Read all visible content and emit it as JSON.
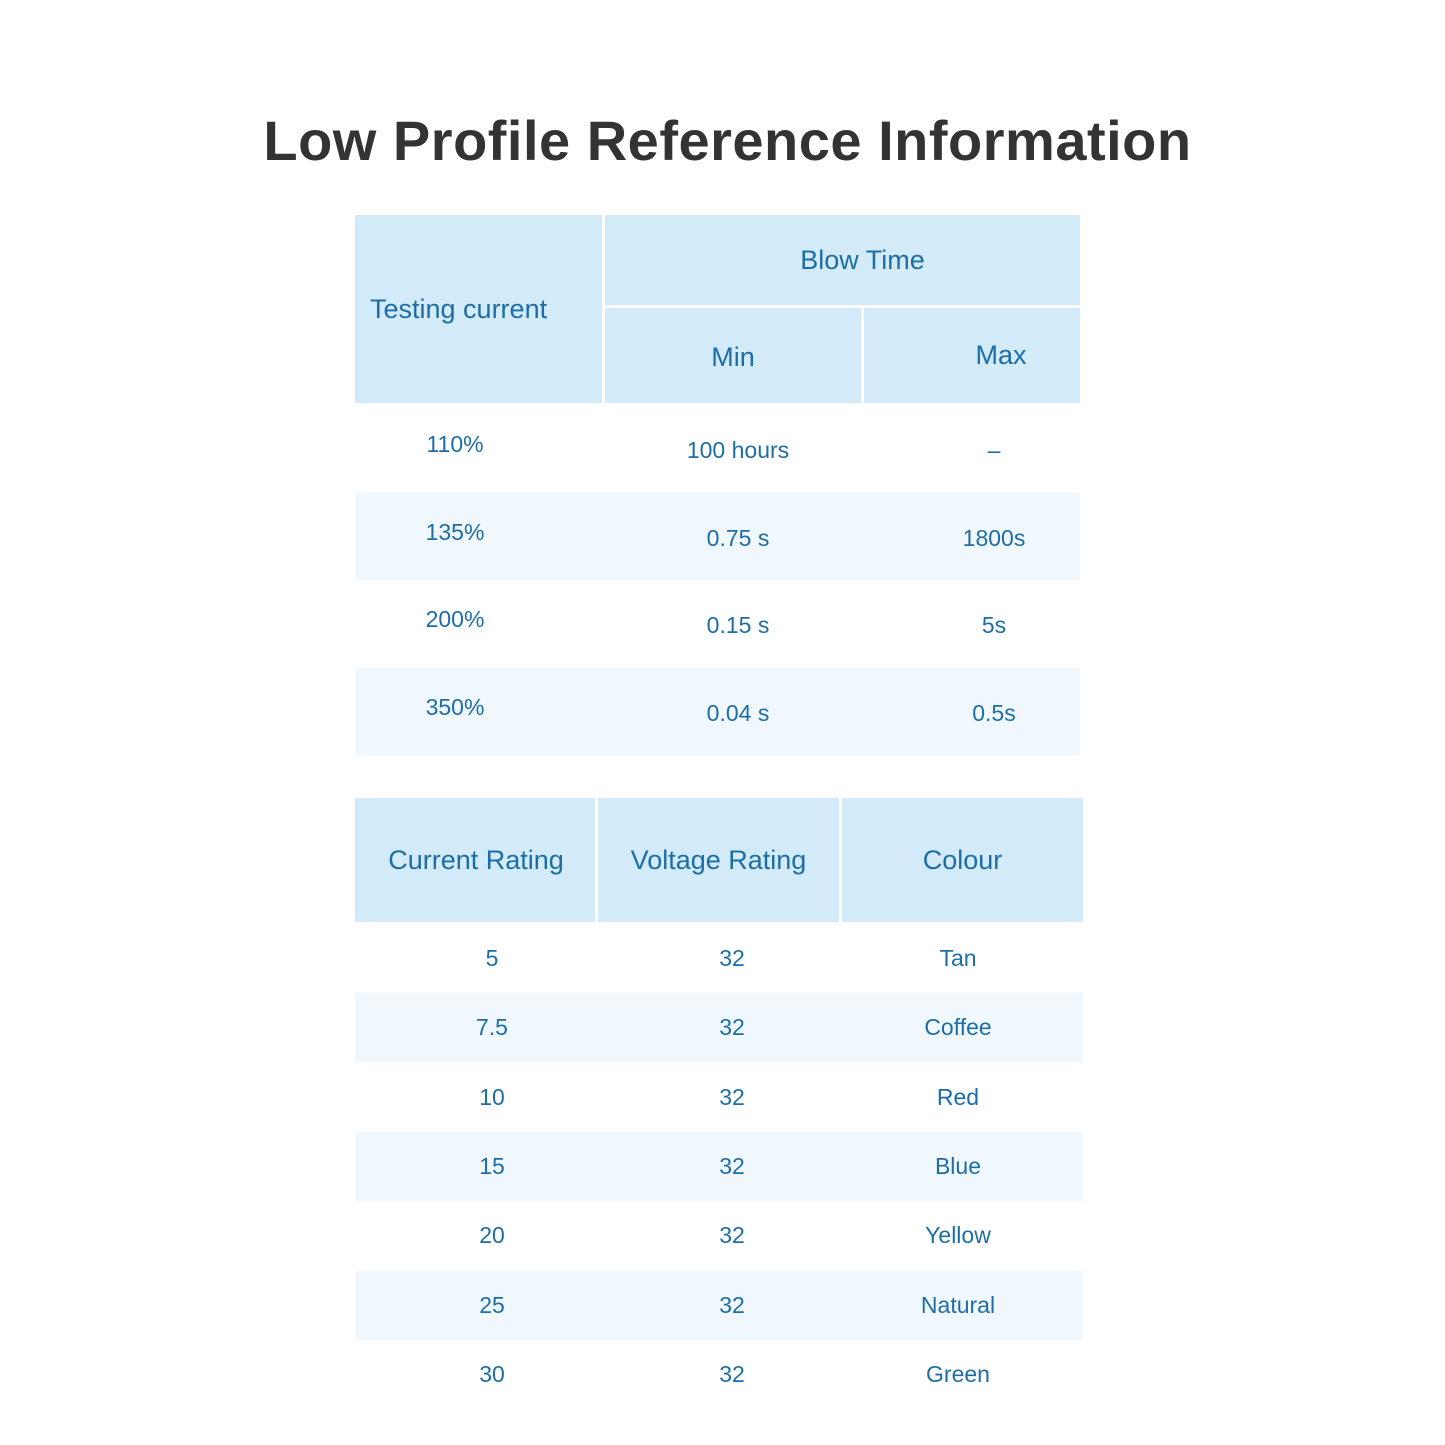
{
  "title": "Low Profile Reference Information",
  "blow_table": {
    "header": {
      "testing_current": "Testing current",
      "blow_time": "Blow Time",
      "min": "Min",
      "max": "Max"
    },
    "rows": [
      {
        "current": "110%",
        "min": "100 hours",
        "max": "–"
      },
      {
        "current": "135%",
        "min": "0.75 s",
        "max": "1800s"
      },
      {
        "current": "200%",
        "min": "0.15 s",
        "max": "5s"
      },
      {
        "current": "350%",
        "min": "0.04 s",
        "max": "0.5s"
      }
    ]
  },
  "rating_table": {
    "header": {
      "current_rating": "Current Rating",
      "voltage_rating": "Voltage Rating",
      "colour": "Colour"
    },
    "rows": [
      {
        "current": "5",
        "voltage": "32",
        "colour": "Tan"
      },
      {
        "current": "7.5",
        "voltage": "32",
        "colour": "Coffee"
      },
      {
        "current": "10",
        "voltage": "32",
        "colour": "Red"
      },
      {
        "current": "15",
        "voltage": "32",
        "colour": "Blue"
      },
      {
        "current": "20",
        "voltage": "32",
        "colour": "Yellow"
      },
      {
        "current": "25",
        "voltage": "32",
        "colour": "Natural"
      },
      {
        "current": "30",
        "voltage": "32",
        "colour": "Green"
      }
    ]
  },
  "colors": {
    "header_bg": "#d3eaf9",
    "alt_row_bg": "#f0f8fe",
    "text": "#1d6ea6",
    "title": "#333333"
  }
}
